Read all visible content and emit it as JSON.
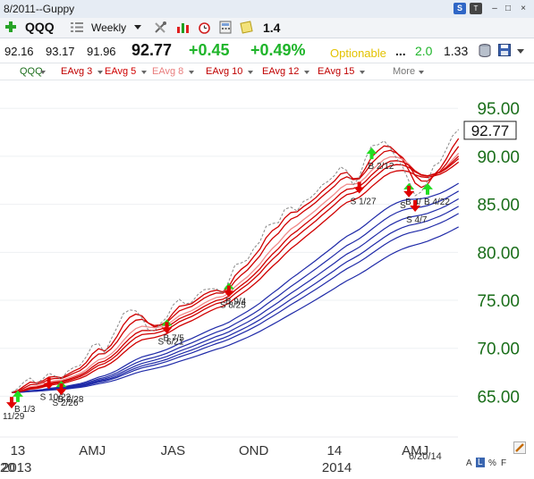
{
  "window": {
    "title": "8/2011--Guppy"
  },
  "title_buttons": {
    "s": "S",
    "t": "T",
    "minimize": "–",
    "restore": "□",
    "close": "×"
  },
  "toolbar": {
    "symbol": "QQQ",
    "period": "Weekly",
    "zoom_value": "1.4"
  },
  "quote": {
    "open": "92.16",
    "high": "93.17",
    "low": "91.96",
    "last": "92.77",
    "change": "+0.45",
    "change_pct": "+0.49%",
    "optionable": "Optionable",
    "ellipsis": "...",
    "value2": "2.0",
    "value3": "1.33"
  },
  "legend_items": [
    "QQQ",
    "EAvg 3",
    "EAvg 5",
    "EAvg 8",
    "EAvg 10",
    "EAvg 12",
    "EAvg 15",
    "More"
  ],
  "colors": {
    "price": "#888888",
    "short_ema": "#d00000",
    "short_ema_light": "#f08a8a",
    "long_ema": "#1f2aa8",
    "axis_text": "#1a6e1a",
    "up_signal": "#22dd22",
    "down_signal": "#e00000"
  },
  "footer": {
    "date": "6/20/14",
    "scale_a": "A",
    "scale_l": "L",
    "scale_pct": "%",
    "scale_f": "F"
  },
  "chart_data": {
    "type": "line",
    "title": "",
    "xlabel": "",
    "ylabel": "",
    "ylim": [
      61.5,
      98
    ],
    "yticks": [
      65,
      70,
      75,
      80,
      85,
      90,
      95
    ],
    "ytick_labels": [
      "65.00",
      "70.00",
      "75.00",
      "80.00",
      "85.00",
      "90.00",
      "95.00"
    ],
    "last_value_label": "92.77",
    "xticks": [
      {
        "week": 1,
        "label": "13"
      },
      {
        "week": 13,
        "label": "AMJ"
      },
      {
        "week": 26,
        "label": "JAS"
      },
      {
        "week": 39,
        "label": "OND"
      },
      {
        "week": 52,
        "label": "14"
      },
      {
        "week": 65,
        "label": "AMJ"
      }
    ],
    "year_labels": [
      {
        "week": -1,
        "label": "2013"
      },
      {
        "week": 52,
        "label": "2014"
      }
    ],
    "x_start_partial_label": "20",
    "series": [
      {
        "name": "QQQ",
        "values": [
          65.4,
          65.8,
          66.5,
          66.9,
          66.3,
          66.8,
          67.4,
          67.1,
          66.8,
          67.6,
          68.0,
          68.2,
          69.1,
          70.3,
          70.5,
          69.5,
          70.9,
          72.2,
          73.6,
          74.0,
          73.9,
          73.2,
          71.9,
          71.8,
          72.6,
          73.2,
          74.5,
          75.1,
          74.6,
          74.8,
          75.6,
          76.1,
          76.2,
          76.2,
          75.7,
          77.0,
          78.7,
          78.9,
          79.2,
          80.4,
          81.1,
          82.7,
          83.0,
          83.1,
          84.5,
          84.7,
          84.3,
          85.3,
          85.6,
          86.2,
          87.0,
          87.4,
          88.0,
          88.9,
          88.5,
          87.0,
          87.8,
          89.8,
          91.1,
          91.2,
          91.6,
          90.9,
          89.8,
          88.9,
          87.4,
          85.9,
          86.3,
          87.4,
          89.0,
          89.4,
          90.7,
          92.1,
          92.8
        ]
      }
    ],
    "signals": [
      {
        "week": 0,
        "type": "sell",
        "label": "11/29"
      },
      {
        "week": 1,
        "type": "buy",
        "label": "B 1/3"
      },
      {
        "week": 6,
        "type": "sell",
        "label": "S 10/22"
      },
      {
        "week": 8,
        "type": "buy",
        "label": "B 2/28"
      },
      {
        "week": 8,
        "type": "sell",
        "label": "S 2/26"
      },
      {
        "week": 25,
        "type": "buy",
        "label": "B 7/5"
      },
      {
        "week": 25,
        "type": "sell",
        "label": "S 6/21"
      },
      {
        "week": 35,
        "type": "buy",
        "label": "B 9/4"
      },
      {
        "week": 35,
        "type": "sell",
        "label": "S 8/25"
      },
      {
        "week": 56,
        "type": "sell",
        "label": "S 1/27"
      },
      {
        "week": 58,
        "type": "buy",
        "label": "B 2/12"
      },
      {
        "week": 64,
        "type": "buy",
        "label": "B 4/"
      },
      {
        "week": 64,
        "type": "sell",
        "label": "S"
      },
      {
        "week": 65,
        "type": "sell",
        "label": "S 4/7"
      },
      {
        "week": 67,
        "type": "buy",
        "label": "B 4/22"
      }
    ]
  }
}
